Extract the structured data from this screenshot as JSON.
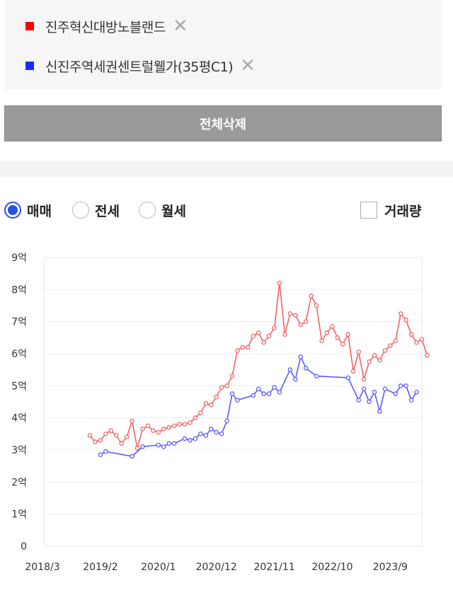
{
  "legend": [
    {
      "label": "진주혁신대방노블랜드",
      "color": "#ff0000",
      "remove": "✕"
    },
    {
      "label": "신진주역세권센트럴웰가(35평C1)",
      "color": "#1a2bff",
      "remove": "✕"
    }
  ],
  "buttons": {
    "delete_all": "전체삭제"
  },
  "trade_types": [
    {
      "label": "매매",
      "selected": true
    },
    {
      "label": "전세",
      "selected": false
    },
    {
      "label": "월세",
      "selected": false
    }
  ],
  "volume_toggle": {
    "label": "거래량",
    "checked": false
  },
  "chart_data": {
    "type": "line",
    "ylim": [
      0,
      9
    ],
    "y_ticks": [
      0,
      1,
      2,
      3,
      4,
      5,
      6,
      7,
      8,
      9
    ],
    "y_tick_labels": [
      "0",
      "1억",
      "2억",
      "3억",
      "4억",
      "5억",
      "6억",
      "7억",
      "8억",
      "9억"
    ],
    "x_tick_labels": [
      "2018/3",
      "2019/2",
      "2020/1",
      "2020/12",
      "2021/11",
      "2022/10",
      "2023/9"
    ],
    "x_range": [
      "2018/3",
      "2024/3"
    ],
    "grid": true,
    "series": [
      {
        "name": "진주혁신대방노블랜드",
        "color": "#f06464",
        "points": [
          [
            "2018/12",
            3.45
          ],
          [
            "2019/1",
            3.25
          ],
          [
            "2019/2",
            3.3
          ],
          [
            "2019/3",
            3.5
          ],
          [
            "2019/4",
            3.6
          ],
          [
            "2019/5",
            3.45
          ],
          [
            "2019/6",
            3.2
          ],
          [
            "2019/7",
            3.4
          ],
          [
            "2019/8",
            3.9
          ],
          [
            "2019/9",
            3.05
          ],
          [
            "2019/10",
            3.65
          ],
          [
            "2019/11",
            3.75
          ],
          [
            "2019/12",
            3.6
          ],
          [
            "2020/1",
            3.55
          ],
          [
            "2020/2",
            3.65
          ],
          [
            "2020/3",
            3.7
          ],
          [
            "2020/4",
            3.75
          ],
          [
            "2020/5",
            3.8
          ],
          [
            "2020/6",
            3.8
          ],
          [
            "2020/7",
            3.85
          ],
          [
            "2020/8",
            4.0
          ],
          [
            "2020/9",
            4.15
          ],
          [
            "2020/10",
            4.45
          ],
          [
            "2020/11",
            4.4
          ],
          [
            "2020/12",
            4.65
          ],
          [
            "2021/1",
            4.95
          ],
          [
            "2021/2",
            5.0
          ],
          [
            "2021/3",
            5.3
          ],
          [
            "2021/4",
            6.1
          ],
          [
            "2021/5",
            6.2
          ],
          [
            "2021/6",
            6.2
          ],
          [
            "2021/7",
            6.55
          ],
          [
            "2021/8",
            6.65
          ],
          [
            "2021/9",
            6.35
          ],
          [
            "2021/10",
            6.55
          ],
          [
            "2021/11",
            6.8
          ],
          [
            "2021/12",
            8.2
          ],
          [
            "2022/1",
            6.6
          ],
          [
            "2022/2",
            7.25
          ],
          [
            "2022/3",
            7.2
          ],
          [
            "2022/4",
            6.9
          ],
          [
            "2022/5",
            7.0
          ],
          [
            "2022/6",
            7.8
          ],
          [
            "2022/7",
            7.5
          ],
          [
            "2022/8",
            6.4
          ],
          [
            "2022/9",
            6.65
          ],
          [
            "2022/10",
            6.85
          ],
          [
            "2022/11",
            6.5
          ],
          [
            "2022/12",
            6.3
          ],
          [
            "2023/1",
            6.6
          ],
          [
            "2023/2",
            5.45
          ],
          [
            "2023/3",
            6.05
          ],
          [
            "2023/4",
            5.2
          ],
          [
            "2023/5",
            5.75
          ],
          [
            "2023/6",
            5.95
          ],
          [
            "2023/7",
            5.8
          ],
          [
            "2023/8",
            6.1
          ],
          [
            "2023/9",
            6.25
          ],
          [
            "2023/10",
            6.4
          ],
          [
            "2023/11",
            7.25
          ],
          [
            "2023/12",
            7.05
          ],
          [
            "2024/1",
            6.6
          ],
          [
            "2024/2",
            6.35
          ],
          [
            "2024/3",
            6.45
          ],
          [
            "2024/4",
            5.95
          ]
        ]
      },
      {
        "name": "신진주역세권센트럴웰가(35평C1)",
        "color": "#5a5aff",
        "points": [
          [
            "2019/2",
            2.85
          ],
          [
            "2019/3",
            2.95
          ],
          [
            "2019/8",
            2.8
          ],
          [
            "2019/10",
            3.1
          ],
          [
            "2020/1",
            3.15
          ],
          [
            "2020/2",
            3.1
          ],
          [
            "2020/3",
            3.2
          ],
          [
            "2020/4",
            3.2
          ],
          [
            "2020/6",
            3.35
          ],
          [
            "2020/7",
            3.3
          ],
          [
            "2020/8",
            3.35
          ],
          [
            "2020/9",
            3.5
          ],
          [
            "2020/10",
            3.45
          ],
          [
            "2020/11",
            3.65
          ],
          [
            "2020/12",
            3.55
          ],
          [
            "2021/1",
            3.5
          ],
          [
            "2021/2",
            3.9
          ],
          [
            "2021/3",
            4.75
          ],
          [
            "2021/4",
            4.55
          ],
          [
            "2021/7",
            4.7
          ],
          [
            "2021/8",
            4.9
          ],
          [
            "2021/9",
            4.75
          ],
          [
            "2021/10",
            4.75
          ],
          [
            "2021/11",
            4.95
          ],
          [
            "2021/12",
            4.8
          ],
          [
            "2022/2",
            5.5
          ],
          [
            "2022/3",
            5.2
          ],
          [
            "2022/4",
            5.9
          ],
          [
            "2022/5",
            5.55
          ],
          [
            "2022/7",
            5.3
          ],
          [
            "2023/1",
            5.25
          ],
          [
            "2023/3",
            4.55
          ],
          [
            "2023/4",
            4.9
          ],
          [
            "2023/5",
            4.5
          ],
          [
            "2023/6",
            4.8
          ],
          [
            "2023/7",
            4.2
          ],
          [
            "2023/8",
            4.9
          ],
          [
            "2023/10",
            4.75
          ],
          [
            "2023/11",
            5.0
          ],
          [
            "2023/12",
            5.0
          ],
          [
            "2024/1",
            4.55
          ],
          [
            "2024/2",
            4.8
          ]
        ]
      }
    ]
  }
}
